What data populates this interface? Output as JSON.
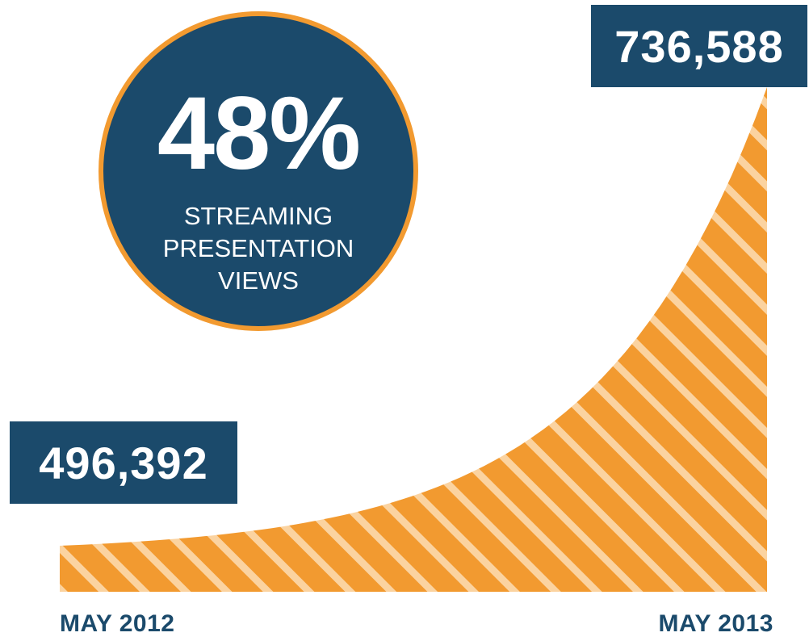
{
  "stat": {
    "percent": "48%",
    "caption_lines": [
      "STREAMING",
      "PRESENTATION",
      "VIEWS"
    ]
  },
  "colors": {
    "navy": "#1b4a6b",
    "orange": "#f29a30",
    "stripe": "#fbd3a0"
  },
  "chart_data": {
    "type": "area",
    "title": "",
    "xlabel": "",
    "ylabel": "",
    "x": [
      "MAY 2012",
      "MAY 2013"
    ],
    "values": [
      496392,
      736588
    ],
    "value_labels": [
      "496,392",
      "736,588"
    ],
    "curve": "exponential",
    "fill": "striped",
    "grid": false
  }
}
